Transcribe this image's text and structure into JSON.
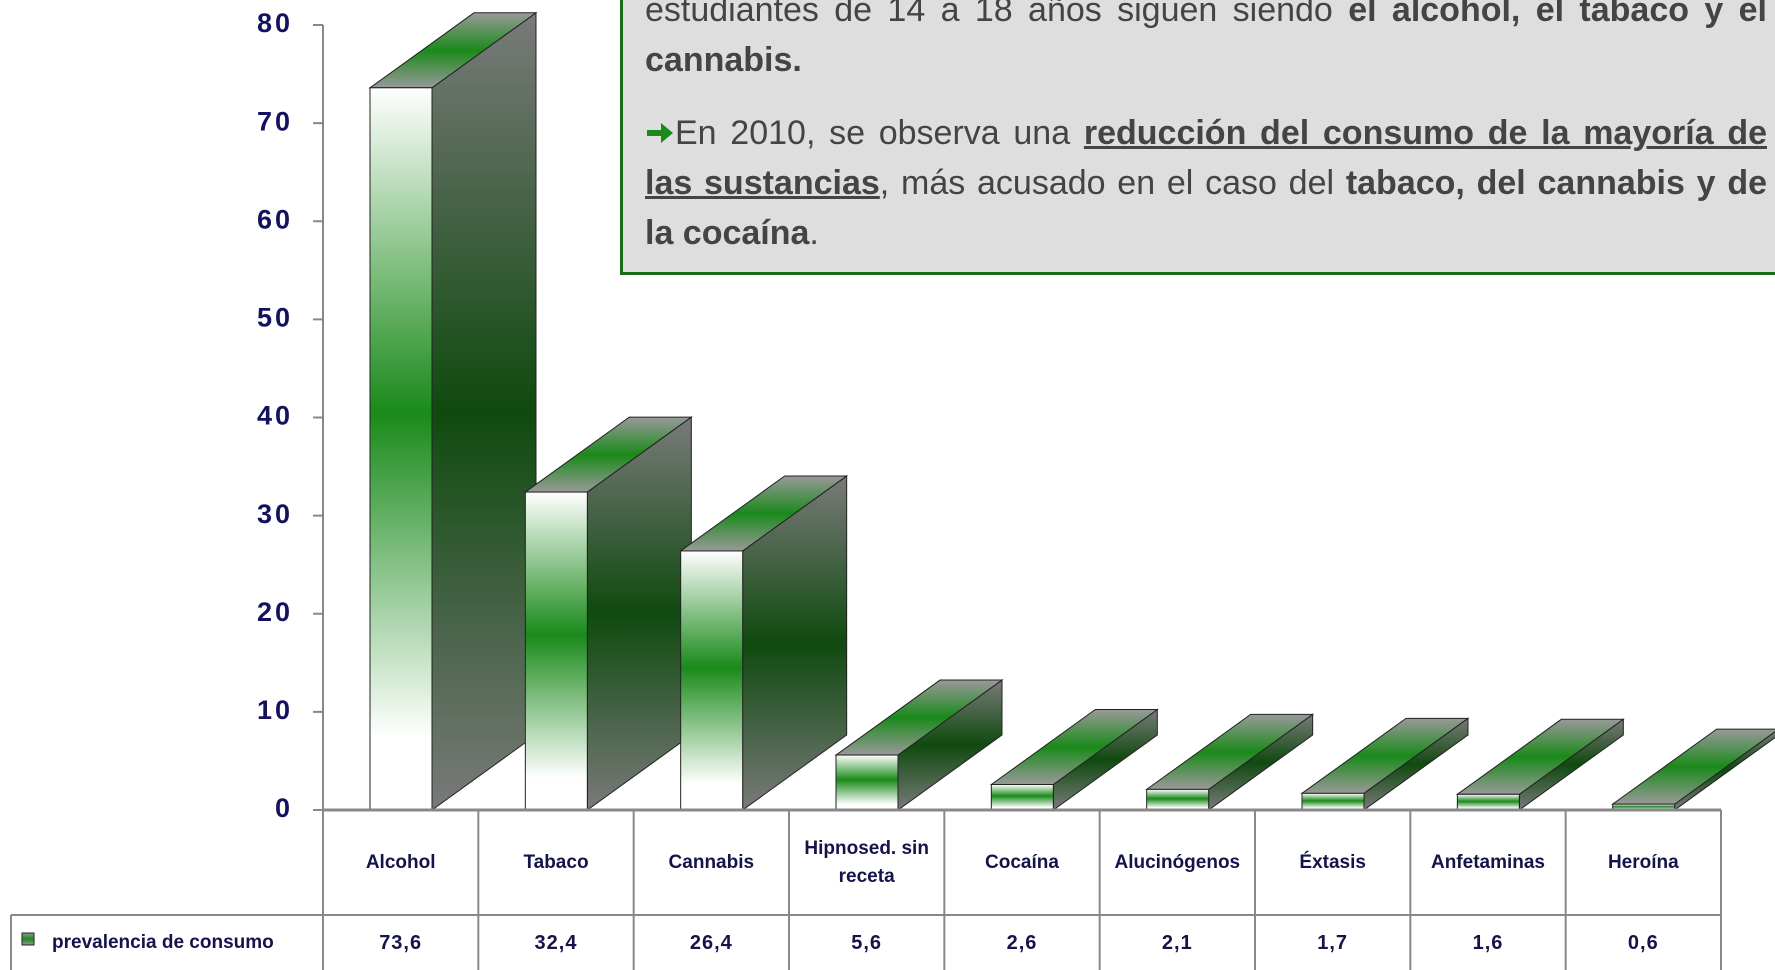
{
  "chart_data": {
    "type": "bar3d",
    "categories": [
      "Alcohol",
      "Tabaco",
      "Cannabis",
      "Hipnosed. sin receta",
      "Cocaína",
      "Alucinógenos",
      "Éxtasis",
      "Anfetaminas",
      "Heroína"
    ],
    "series": [
      {
        "name": "prevalencia de consumo",
        "color": "#1a8a1a",
        "values": [
          73.6,
          32.4,
          26.4,
          5.6,
          2.6,
          2.1,
          1.7,
          1.6,
          0.6
        ],
        "value_labels": [
          "73,6",
          "32,4",
          "26,4",
          "5,6",
          "2,6",
          "2,1",
          "1,7",
          "1,6",
          "0,6"
        ]
      }
    ],
    "ylim": [
      0,
      80
    ],
    "yticks": [
      0,
      10,
      20,
      30,
      40,
      50,
      60,
      70,
      80
    ],
    "annotation": [
      [
        {
          "text": "estudiantes de 14 a 18 años siguen siendo ",
          "style": "normal"
        },
        {
          "text": "el alcohol, el tabaco y el cannabis.",
          "style": "bold"
        }
      ],
      [
        {
          "text": "En 2010, se observa una ",
          "style": "normal"
        },
        {
          "text": "reducción del consumo de la mayoría de las sustancias",
          "style": "bold-underline"
        },
        {
          "text": ", más acusado en el caso del ",
          "style": "normal"
        },
        {
          "text": "tabaco, del cannabis y de la cocaína",
          "style": "bold"
        },
        {
          "text": ".",
          "style": "normal"
        }
      ]
    ]
  }
}
